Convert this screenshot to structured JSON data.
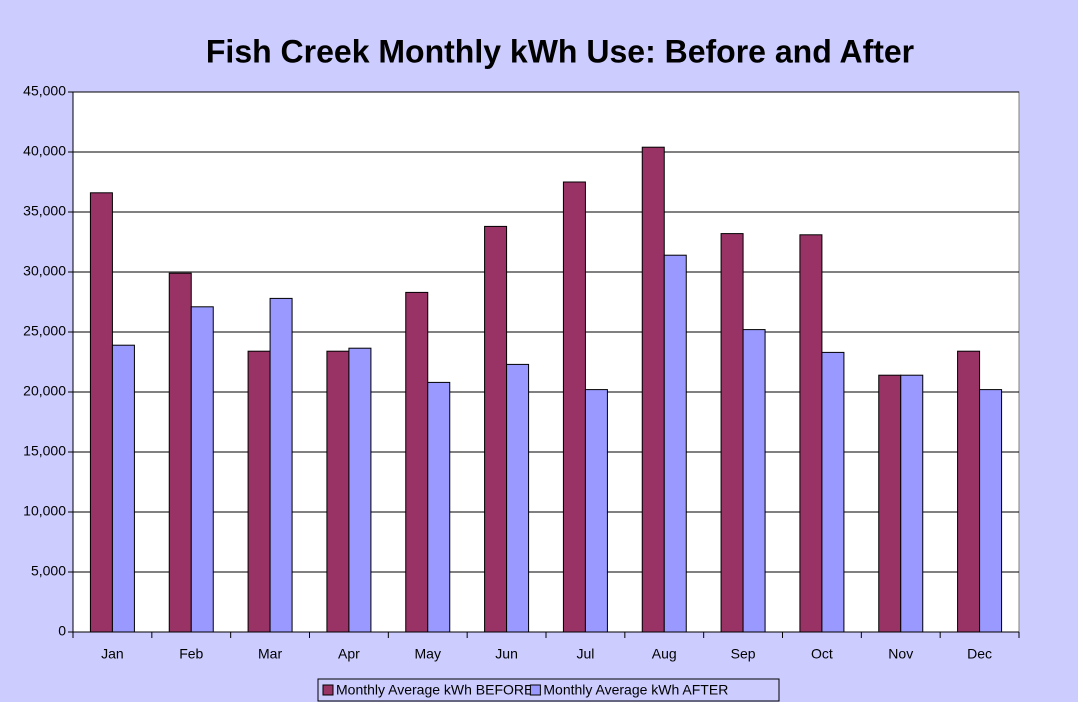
{
  "chart_data": {
    "type": "bar",
    "title": "Fish Creek Monthly kWh Use: Before and After",
    "categories": [
      "Jan",
      "Feb",
      "Mar",
      "Apr",
      "May",
      "Jun",
      "Jul",
      "Aug",
      "Sep",
      "Oct",
      "Nov",
      "Dec"
    ],
    "series": [
      {
        "name": "Monthly Average kWh BEFORE",
        "color": "#993366",
        "values": [
          36600,
          29900,
          23400,
          23400,
          28300,
          33800,
          37500,
          40400,
          33200,
          33100,
          21400,
          23400
        ]
      },
      {
        "name": "Monthly Average kWh AFTER",
        "color": "#9999ff",
        "values": [
          23900,
          27100,
          27800,
          23650,
          20800,
          22300,
          20200,
          31400,
          25200,
          23300,
          21400,
          20200
        ]
      }
    ],
    "ylim": [
      0,
      45000
    ],
    "yticks": [
      0,
      {
        "value": 5000,
        "label": "5,000"
      },
      {
        "value": 10000,
        "label": "10,000"
      },
      {
        "value": 15000,
        "label": "15,000"
      },
      {
        "value": 20000,
        "label": "20,000"
      },
      {
        "value": 25000,
        "label": "25,000"
      },
      {
        "value": 30000,
        "label": "30,000"
      },
      {
        "value": 35000,
        "label": "35,000"
      },
      {
        "value": 40000,
        "label": "40,000"
      },
      {
        "value": 45000,
        "label": "45,000"
      }
    ],
    "grid": true,
    "legend": "bottom"
  }
}
